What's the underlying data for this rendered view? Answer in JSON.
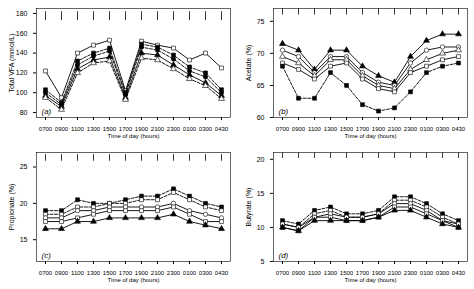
{
  "chart_data": [
    {
      "type": "line",
      "annotation": "(a)",
      "ylabel": "Total VFA (mmol/L)",
      "xlabel": "Time of day (hours)",
      "categories": [
        "0700",
        "0900",
        "1100",
        "1300",
        "1500",
        "1700",
        "1900",
        "2100",
        "2300",
        "0100",
        "0300",
        "0430"
      ],
      "ylim": [
        75,
        185
      ],
      "yticks": [
        80,
        100,
        120,
        140,
        160,
        180
      ],
      "grid": false,
      "series": [
        {
          "color": "black",
          "marker": "square-open",
          "line_style": "solid",
          "values": [
            122,
            95,
            140,
            148,
            153,
            102,
            152,
            148,
            145,
            133,
            140,
            125
          ]
        },
        {
          "color": "black",
          "marker": "square",
          "line_style": "dashed",
          "values": [
            103,
            90,
            132,
            140,
            145,
            100,
            149,
            146,
            138,
            126,
            120,
            103
          ]
        },
        {
          "color": "black",
          "marker": "circle",
          "line_style": "dashed",
          "values": [
            100,
            88,
            128,
            137,
            142,
            98,
            146,
            143,
            134,
            122,
            116,
            100
          ]
        },
        {
          "color": "black",
          "marker": "triangle",
          "line_style": "solid",
          "values": [
            97,
            86,
            124,
            133,
            136,
            95,
            140,
            138,
            128,
            118,
            110,
            97
          ]
        },
        {
          "color": "black",
          "marker": "triangle-open",
          "line_style": "dashed",
          "values": [
            95,
            83,
            120,
            130,
            132,
            93,
            135,
            133,
            124,
            114,
            107,
            94
          ]
        }
      ],
      "error_bars": {
        "y": [
          177.3,
          177.3,
          177.3,
          177.3,
          177.3,
          177.3,
          177.3,
          177.3,
          177.3,
          177.3,
          177.3,
          177.3
        ],
        "yerr": [
          4.4,
          4.4,
          4.4,
          4.4,
          4.4,
          4.4,
          4.4,
          4.4,
          4.4,
          4.4,
          4.4,
          4.4
        ]
      }
    },
    {
      "type": "line",
      "annotation": "(b)",
      "ylabel": "Acetate (%)",
      "xlabel": "Time of day (hours)",
      "categories": [
        "0700",
        "0900",
        "1100",
        "1300",
        "1500",
        "1700",
        "1900",
        "2100",
        "2300",
        "0100",
        "0300",
        "0430"
      ],
      "ylim": [
        60,
        77
      ],
      "yticks": [
        60,
        65,
        70,
        75
      ],
      "grid": false,
      "series": [
        {
          "color": "black",
          "marker": "triangle",
          "line_style": "solid",
          "values": [
            71.5,
            70.5,
            67.5,
            70.5,
            70.5,
            68,
            66.5,
            65.5,
            69.5,
            72,
            73,
            73
          ]
        },
        {
          "color": "black",
          "marker": "circle-open",
          "line_style": "solid",
          "values": [
            70.5,
            69.5,
            67,
            69.5,
            69.5,
            67,
            65.5,
            65,
            68.5,
            70.5,
            71,
            71
          ]
        },
        {
          "color": "black",
          "marker": "triangle-open",
          "line_style": "solid",
          "values": [
            69.5,
            68.5,
            66.5,
            69,
            69,
            66.5,
            65,
            64.5,
            67.5,
            69,
            70,
            70.5
          ]
        },
        {
          "color": "black",
          "marker": "square-open",
          "line_style": "solid",
          "values": [
            68.5,
            67.5,
            66,
            68,
            68.5,
            66,
            64.5,
            64,
            67,
            68,
            69,
            69.5
          ]
        },
        {
          "color": "black",
          "marker": "square",
          "line_style": "dashed",
          "values": [
            68,
            63,
            63,
            67,
            65,
            62,
            61,
            61.5,
            64,
            67,
            68,
            68.5
          ]
        }
      ],
      "error_bars": {
        "y": [
          76.49,
          76.49,
          76.49,
          76.49,
          76.49,
          76.49,
          76.49,
          76.49,
          76.49,
          76.49,
          76.49,
          76.49
        ],
        "yerr": [
          0.51,
          0.51,
          0.51,
          0.51,
          0.51,
          0.51,
          0.51,
          0.51,
          0.51,
          0.51,
          0.51,
          0.51
        ]
      }
    },
    {
      "type": "line",
      "annotation": "(c)",
      "ylabel": "Propionate (%)",
      "xlabel": "Time of day (hours)",
      "categories": [
        "0700",
        "0900",
        "1100",
        "1300",
        "1500",
        "1700",
        "1900",
        "2100",
        "2300",
        "0100",
        "0300",
        "0430"
      ],
      "ylim": [
        12,
        27
      ],
      "yticks": [
        15,
        20,
        25
      ],
      "grid": false,
      "series": [
        {
          "color": "black",
          "marker": "square",
          "line_style": "dashed",
          "values": [
            19,
            19,
            20.5,
            20,
            20,
            20.5,
            21,
            21,
            22,
            21,
            20,
            19.5
          ]
        },
        {
          "color": "black",
          "marker": "square-open",
          "line_style": "dashed",
          "values": [
            18.5,
            18.5,
            19.5,
            19.5,
            20,
            20,
            20.5,
            20.5,
            21.5,
            20.5,
            19.5,
            19
          ]
        },
        {
          "color": "black",
          "marker": "circle-open",
          "line_style": "solid",
          "values": [
            18,
            18,
            19,
            19,
            19.5,
            19.5,
            19.5,
            19.5,
            20,
            19,
            18.5,
            18
          ]
        },
        {
          "color": "black",
          "marker": "square-open",
          "line_style": "solid",
          "values": [
            17.5,
            17.5,
            18,
            18.5,
            19,
            19,
            19,
            19,
            19.5,
            18.5,
            17.5,
            17.5
          ]
        },
        {
          "color": "black",
          "marker": "triangle",
          "line_style": "solid",
          "values": [
            16.5,
            16.5,
            17.5,
            17.5,
            18,
            18,
            18,
            18,
            18.5,
            17.5,
            17,
            16.5
          ]
        }
      ],
      "error_bars": {
        "y": [
          26.25,
          26.25,
          26.25,
          26.25,
          26.25,
          26.25,
          26.25,
          26.25,
          26.25,
          26.25,
          26.25,
          26.25
        ],
        "yerr": [
          0.45,
          0.45,
          0.45,
          0.45,
          0.45,
          0.45,
          0.45,
          0.45,
          0.45,
          0.45,
          0.45,
          0.45
        ]
      }
    },
    {
      "type": "line",
      "annotation": "(d)",
      "ylabel": "Butyrate (%)",
      "xlabel": "Time of day (hours)",
      "categories": [
        "0700",
        "0900",
        "1100",
        "1300",
        "1500",
        "1700",
        "1900",
        "2100",
        "2300",
        "0100",
        "0300",
        "0430"
      ],
      "ylim": [
        5,
        21
      ],
      "yticks": [
        5,
        10,
        15,
        20
      ],
      "grid": false,
      "series": [
        {
          "color": "black",
          "marker": "square",
          "line_style": "dashed",
          "values": [
            11,
            10.5,
            12.5,
            13,
            12,
            12,
            12.5,
            14.5,
            14.5,
            13.5,
            12,
            11
          ]
        },
        {
          "color": "black",
          "marker": "square-open",
          "line_style": "dashed",
          "values": [
            10.5,
            10,
            12,
            12.5,
            11.5,
            11.5,
            12,
            14,
            14,
            13,
            11.5,
            10.5
          ]
        },
        {
          "color": "black",
          "marker": "circle-open",
          "line_style": "solid",
          "values": [
            10.5,
            10,
            11.5,
            12,
            11.5,
            11.5,
            12,
            13.5,
            13.5,
            12.5,
            11,
            10.5
          ]
        },
        {
          "color": "black",
          "marker": "square-open",
          "line_style": "solid",
          "values": [
            10,
            9.5,
            11.5,
            11.5,
            11,
            11,
            11.5,
            13,
            13,
            12,
            11,
            10
          ]
        },
        {
          "color": "black",
          "marker": "triangle",
          "line_style": "solid",
          "values": [
            10,
            9.5,
            11,
            11,
            11,
            11,
            11.5,
            12.5,
            12.5,
            11.5,
            10.5,
            10
          ]
        }
      ],
      "error_bars": {
        "y": [
          20.52,
          20.52,
          20.52,
          20.52,
          20.52,
          20.52,
          20.52,
          20.52,
          20.52,
          20.52,
          20.52,
          20.52
        ],
        "yerr": [
          0.4,
          0.4,
          0.4,
          0.4,
          0.4,
          0.4,
          0.4,
          0.4,
          0.4,
          0.4,
          0.4,
          0.4
        ]
      }
    }
  ]
}
